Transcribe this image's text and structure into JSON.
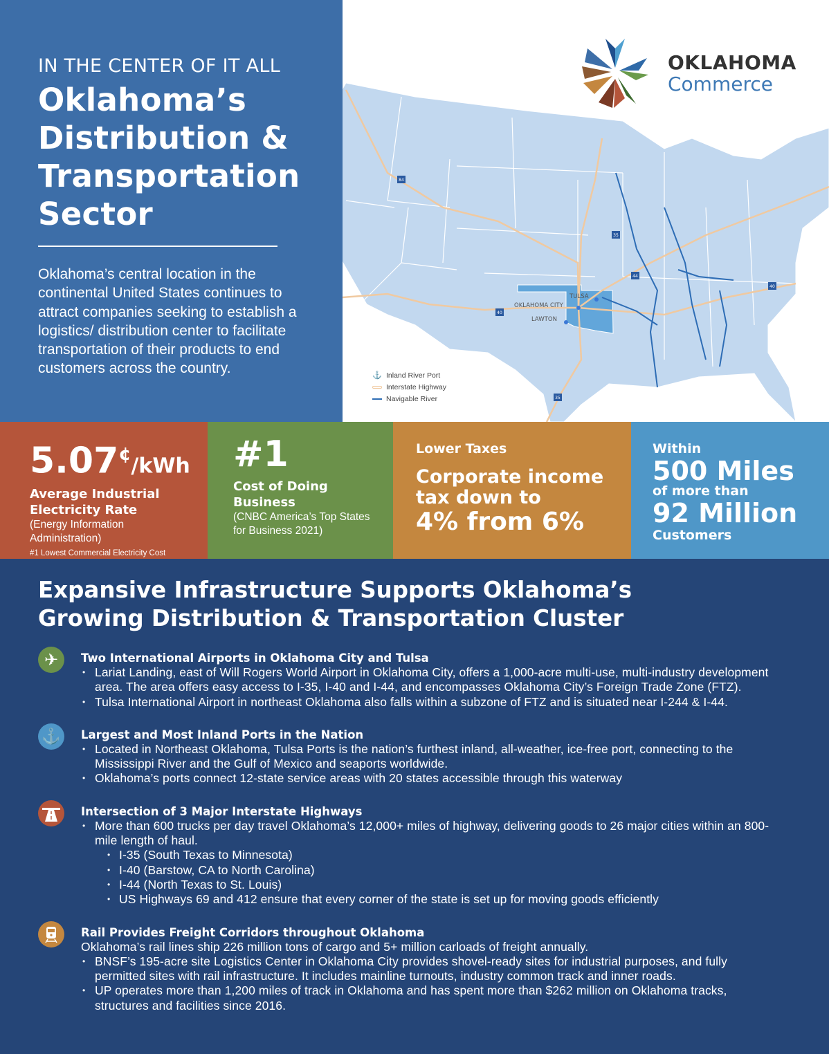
{
  "header": {
    "kicker": "IN THE CENTER OF IT ALL",
    "title_lines": [
      "Oklahoma’s",
      "Distribution &",
      "Transportation",
      "Sector"
    ],
    "intro": "Oklahoma’s central location in the continental United States continues to attract companies seeking to establish a logistics/ distribution center to facilitate transportation of their products to end customers across the country."
  },
  "logo": {
    "line1": "OKLAHOMA",
    "line2": "Commerce"
  },
  "map": {
    "cities": [
      "TULSA",
      "OKLAHOMA CITY",
      "LAWTON"
    ],
    "shields": [
      "84",
      "35",
      "44",
      "40",
      "40",
      "35"
    ],
    "legend": [
      {
        "icon": "anchor-icon",
        "label": "Inland River Port"
      },
      {
        "icon": "highway-line",
        "label": "Interstate Highway"
      },
      {
        "icon": "river-line",
        "label": "Navigable River"
      }
    ],
    "colors": {
      "land": "#c2d8ef",
      "oklahoma": "#62a6da",
      "highway": "#f0c9a0",
      "river": "#2e6db5"
    }
  },
  "stats": [
    {
      "value": "5.07",
      "unit_sup": "¢",
      "unit": "/kWh",
      "heading": "Average Industrial Electricity Rate",
      "note": "(Energy Information Administration)",
      "footnote": "#1 Lowest Commercial Electricity Cost",
      "color": "#b5553a"
    },
    {
      "value": "#1",
      "heading": "Cost of Doing Business",
      "note": "(CNBC America’s Top States for Business 2021)",
      "color": "#6b914a"
    },
    {
      "label": "Lower Taxes",
      "line1": "Corporate income",
      "line2": "tax down to",
      "line3": "4% from 6%",
      "color": "#c4873f"
    },
    {
      "pre": "Within",
      "big1": "500 Miles",
      "mid": "of more than",
      "big2": "92 Million",
      "post": "Customers",
      "color": "#4f97c8"
    }
  ],
  "infrastructure": {
    "title_lines": [
      "Expansive Infrastructure Supports Oklahoma’s",
      "Growing Distribution & Transportation Cluster"
    ],
    "sections": [
      {
        "icon": "airplane-icon",
        "title": "Two International Airports in Oklahoma City and Tulsa",
        "bullets": [
          "Lariat Landing, east of Will Rogers World Airport in Oklahoma City, offers a 1,000-acre multi-use, multi-industry development area. The area offers easy access to I-35, I-40 and I-44, and encompasses Oklahoma City’s Foreign Trade Zone (FTZ).",
          "Tulsa International Airport in northeast Oklahoma also falls within a subzone of FTZ and is situated near I-244 & I-44."
        ]
      },
      {
        "icon": "anchor-icon",
        "title": "Largest and Most Inland Ports in the Nation",
        "bullets": [
          "Located in Northeast Oklahoma, Tulsa Ports is the nation’s furthest inland, all-weather, ice-free port, connecting to the Mississippi River and the Gulf of Mexico and seaports worldwide.",
          "Oklahoma’s ports connect 12-state service areas with 20 states accessible through this waterway"
        ]
      },
      {
        "icon": "highway-icon",
        "title": "Intersection of 3 Major Interstate Highways",
        "bullets": [
          "More than 600 trucks per day travel Oklahoma’s 12,000+ miles of highway, delivering goods to 26 major cities within an 800-mile length of haul."
        ],
        "sub_bullets": [
          "I-35 (South Texas to Minnesota)",
          "I-40 (Barstow, CA to North Carolina)",
          "I-44 (North Texas to St. Louis)",
          "US Highways 69 and 412 ensure that every corner of the state is set up for moving goods efficiently"
        ]
      },
      {
        "icon": "train-icon",
        "title": "Rail Provides Freight Corridors throughout Oklahoma",
        "lead": "Oklahoma’s rail lines ship 226 million tons of cargo and 5+ million carloads of freight annually.",
        "bullets": [
          "BNSF’s 195-acre site Logistics Center in Oklahoma City provides shovel-ready sites for industrial purposes, and fully permitted sites with rail infrastructure. It includes mainline turnouts, industry common track and inner roads.",
          "UP operates more than 1,200 miles of track in Oklahoma and has spent more than $262 million on Oklahoma tracks, structures and facilities since 2016."
        ]
      }
    ]
  }
}
